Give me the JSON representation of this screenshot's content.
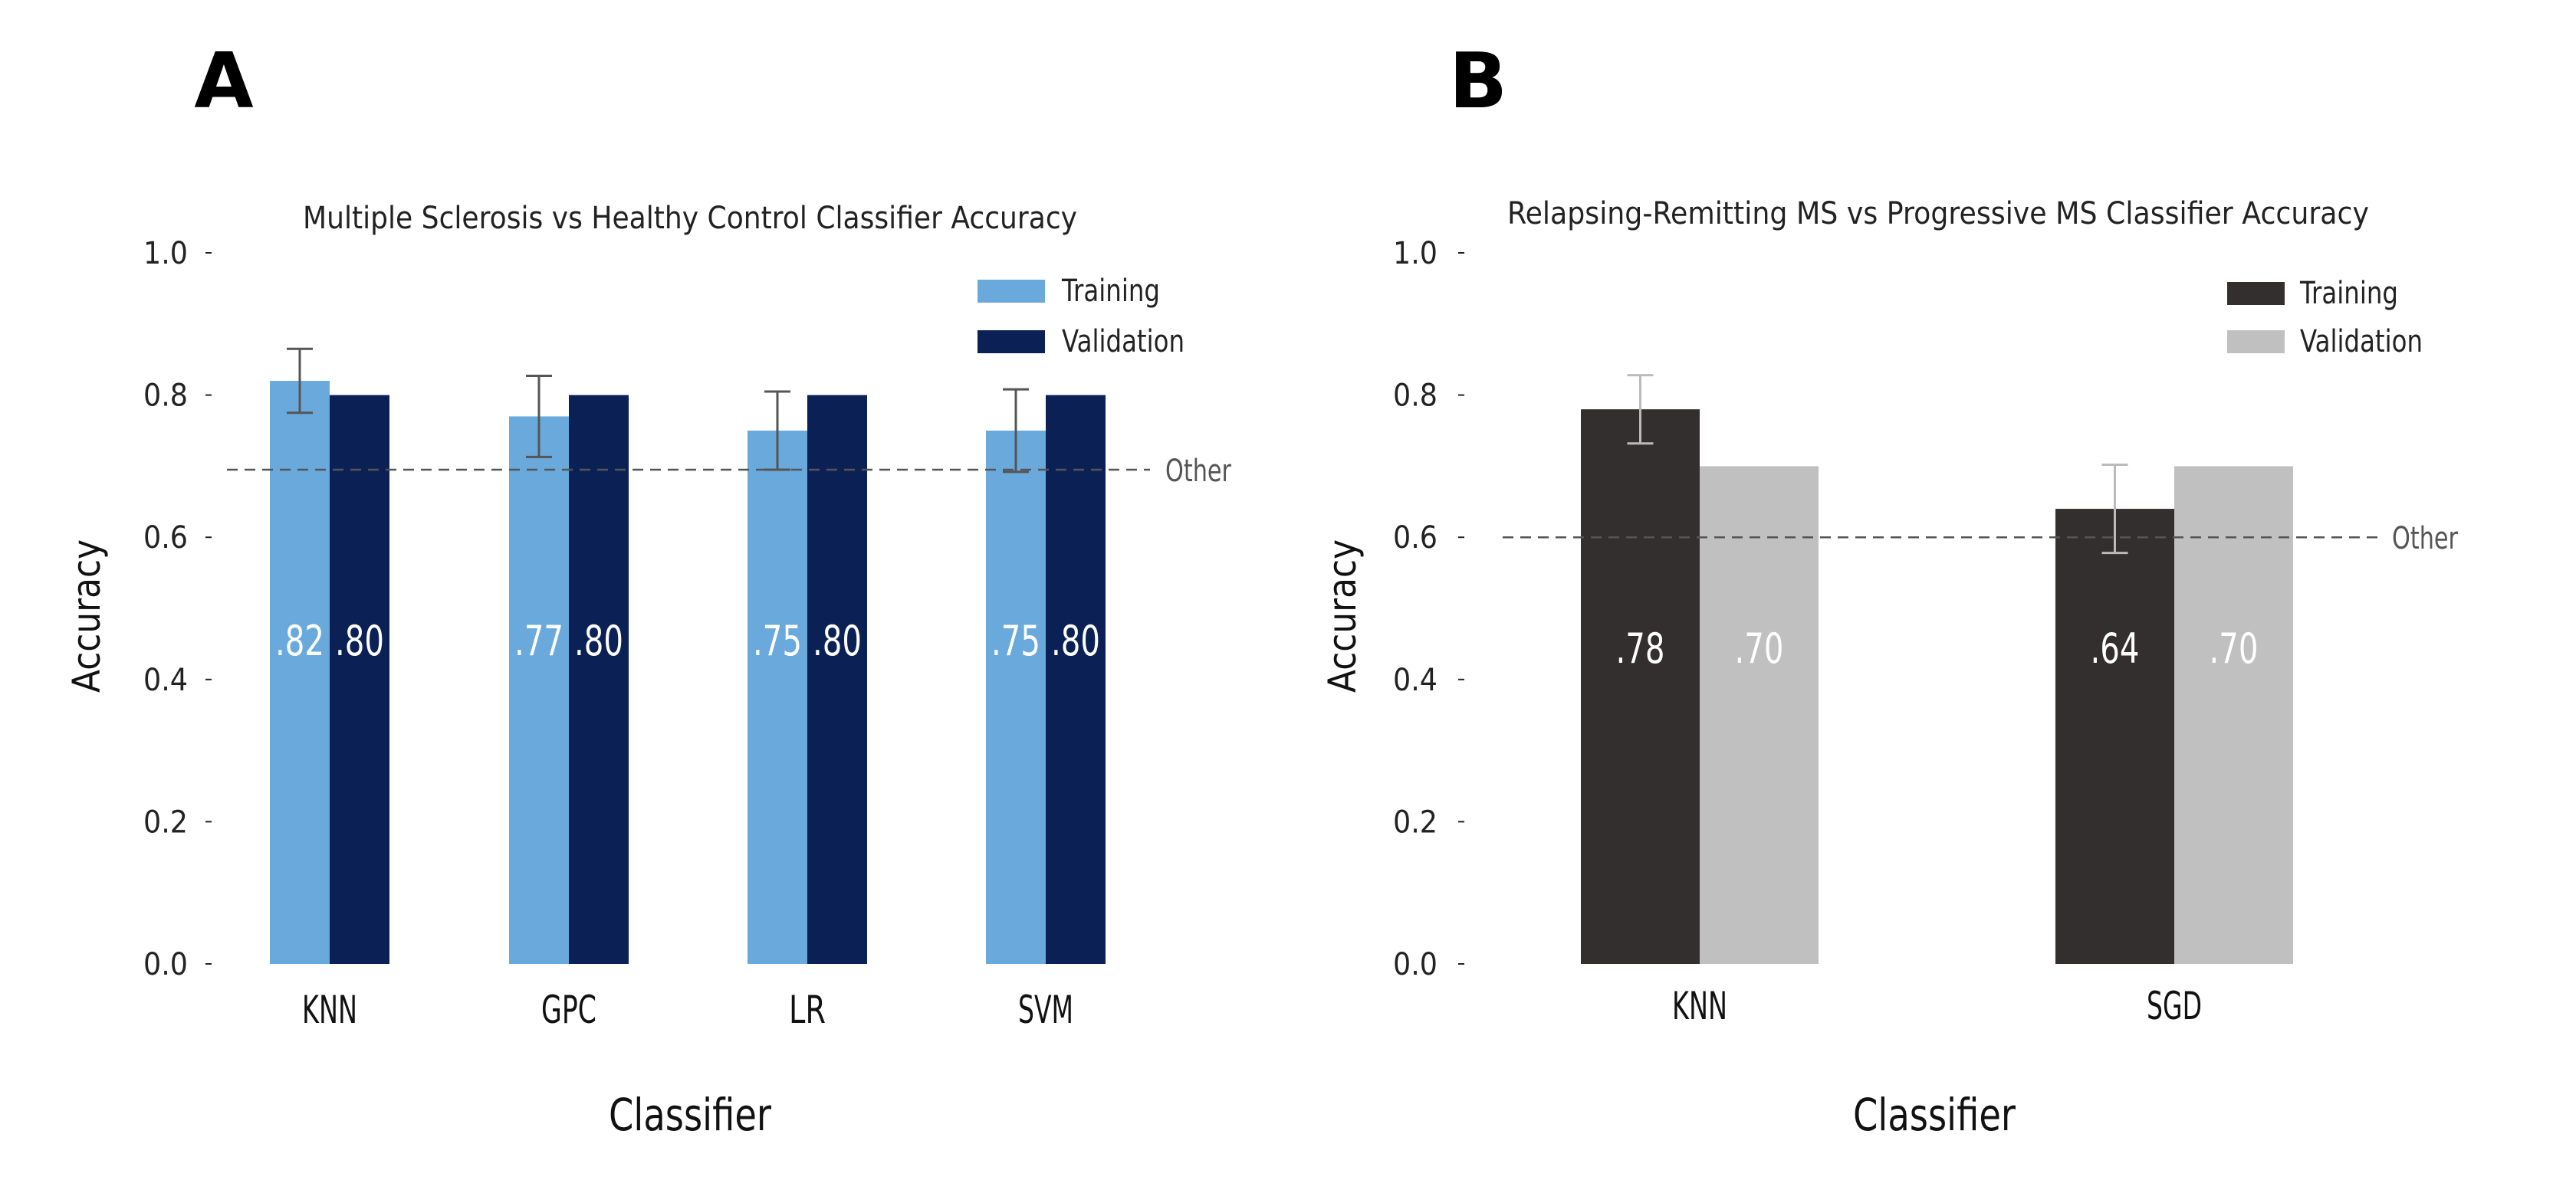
{
  "chart_data": [
    {
      "panel_label": "A",
      "type": "bar",
      "title": "Multiple Sclerosis vs Healthy Control Classifier Accuracy",
      "xlabel": "Classifier",
      "ylabel": "Accuracy",
      "ylim": [
        0,
        1.0
      ],
      "yticks": [
        "0.0",
        "0.2",
        "0.4",
        "0.6",
        "0.8",
        "1.0"
      ],
      "grid": false,
      "legend_position": "top-right",
      "categories": [
        "KNN",
        "GPC",
        "LR",
        "SVM"
      ],
      "series": [
        {
          "name": "Training",
          "color": "#6aa9dc",
          "values": [
            0.82,
            0.77,
            0.75,
            0.75
          ],
          "labels": [
            ".82",
            ".77",
            ".75",
            ".75"
          ],
          "error": [
            0.045,
            0.057,
            0.055,
            0.058
          ],
          "errorbar_color": "#555555"
        },
        {
          "name": "Validation",
          "color": "#0b2156",
          "values": [
            0.8,
            0.8,
            0.8,
            0.8
          ],
          "labels": [
            ".80",
            ".80",
            ".80",
            ".80"
          ]
        }
      ],
      "reference_line": {
        "value": 0.695,
        "label": "Other",
        "style": "dashed"
      }
    },
    {
      "panel_label": "B",
      "type": "bar",
      "title": "Relapsing-Remitting MS vs Progressive MS Classifier Accuracy",
      "xlabel": "Classifier",
      "ylabel": "Accuracy",
      "ylim": [
        0,
        1.0
      ],
      "yticks": [
        "0.0",
        "0.2",
        "0.4",
        "0.6",
        "0.8",
        "1.0"
      ],
      "grid": false,
      "legend_position": "top-right",
      "categories": [
        "KNN",
        "SGD"
      ],
      "series": [
        {
          "name": "Training",
          "color": "#332f2e",
          "values": [
            0.78,
            0.64
          ],
          "labels": [
            ".78",
            ".64"
          ],
          "error": [
            0.048,
            0.062
          ],
          "errorbar_color": "#bbbbbb"
        },
        {
          "name": "Validation",
          "color": "#c0c0c0",
          "values": [
            0.7,
            0.7
          ],
          "labels": [
            ".70",
            ".70"
          ]
        }
      ],
      "reference_line": {
        "value": 0.6,
        "label": "Other",
        "style": "dashed"
      }
    }
  ]
}
